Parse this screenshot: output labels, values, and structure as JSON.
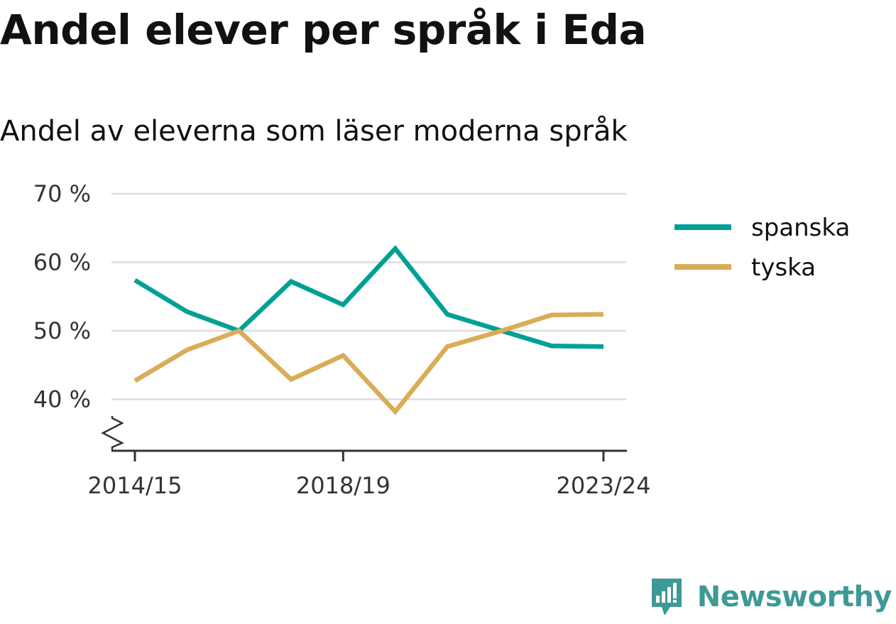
{
  "header": {
    "title": "Andel elever per språk i Eda",
    "subtitle": "Andel av eleverna som läser moderna språk"
  },
  "brand": {
    "name": "Newsworthy",
    "color": "#3d9a96",
    "icon": "newsworthy-logo-icon"
  },
  "chart_data": {
    "type": "line",
    "x": [
      "2014/15",
      "2015/16",
      "2016/17",
      "2017/18",
      "2018/19",
      "2019/20",
      "2020/21",
      "2021/22",
      "2022/23",
      "2023/24"
    ],
    "x_tick_labels": [
      "2014/15",
      "2018/19",
      "2023/24"
    ],
    "y_ticks": [
      40,
      50,
      60,
      70
    ],
    "y_tick_labels": [
      "40 %",
      "50 %",
      "60 %",
      "70 %"
    ],
    "ylim": [
      33,
      72
    ],
    "y_axis_broken": true,
    "grid": true,
    "legend_position": "right",
    "series": [
      {
        "name": "spanska",
        "color": "#00a096",
        "values": [
          57.4,
          52.8,
          50.0,
          57.2,
          53.8,
          62.0,
          52.4,
          50.1,
          47.8,
          47.7
        ]
      },
      {
        "name": "tyska",
        "color": "#d9ad57",
        "values": [
          42.7,
          47.2,
          50.0,
          42.9,
          46.4,
          38.2,
          47.7,
          49.9,
          52.3,
          52.4
        ]
      }
    ]
  }
}
